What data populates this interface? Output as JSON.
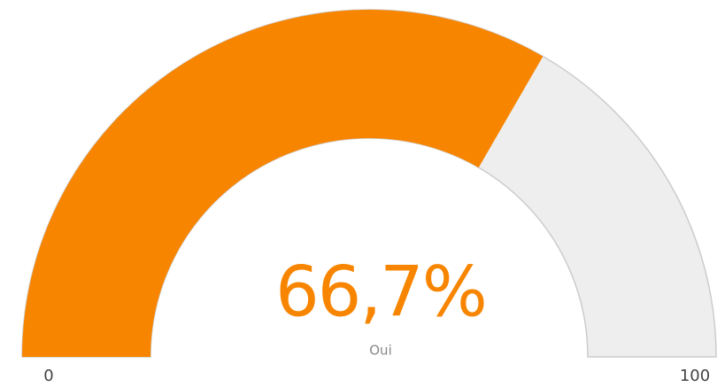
{
  "chart_data": {
    "type": "gauge",
    "value": 66.7,
    "value_label": "66,7%",
    "label": "Oui",
    "ylim": [
      0,
      100
    ],
    "yticks": [
      0,
      100
    ],
    "color": "#f88500",
    "track_color": "#eeeeee"
  }
}
